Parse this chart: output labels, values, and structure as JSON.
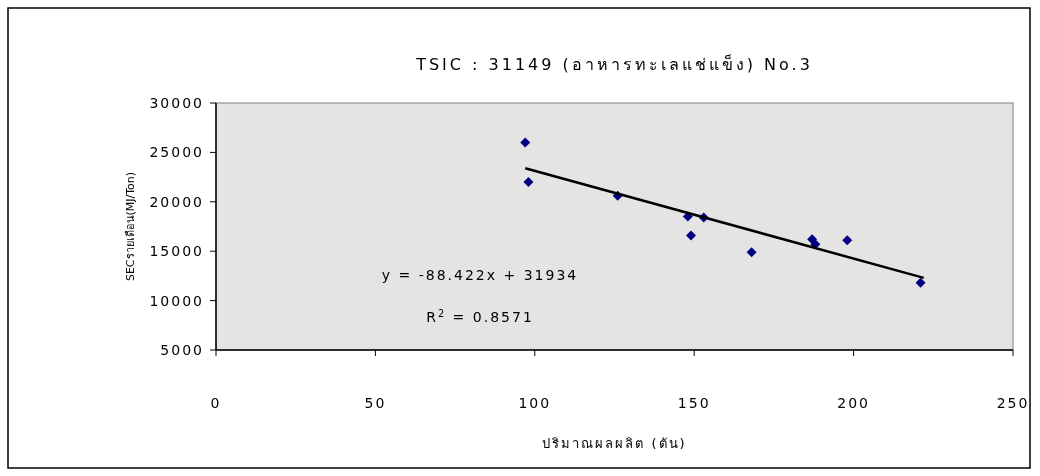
{
  "chart_data": {
    "type": "scatter",
    "title": "TSIC : 31149 (อาหารทะเลแช่แข็ง) No.3",
    "xlabel": "ปริมาณผลผลิต (ตัน)",
    "ylabel": "SECรายเดือน(MJ/Ton)",
    "xlim": [
      0,
      250
    ],
    "xticks": [
      0,
      50,
      100,
      150,
      200,
      250
    ],
    "ylim": [
      5000,
      30000
    ],
    "yticks": [
      5000,
      10000,
      15000,
      20000,
      25000,
      30000
    ],
    "grid": false,
    "series": [
      {
        "marker": "diamond",
        "color": "#000080",
        "x": [
          97,
          98,
          126,
          148,
          153,
          149,
          168,
          187,
          188,
          198,
          221
        ],
        "values": [
          26000,
          22000,
          20600,
          18500,
          18400,
          16600,
          14900,
          16200,
          15700,
          16100,
          11800
        ]
      },
      {
        "type": "line",
        "color": "#000000",
        "x": [
          97,
          222
        ],
        "values": [
          23400,
          12300
        ]
      }
    ],
    "annotations": [
      "y = -88.422x + 31934",
      "R$^{2}$ = 0.8571"
    ]
  }
}
